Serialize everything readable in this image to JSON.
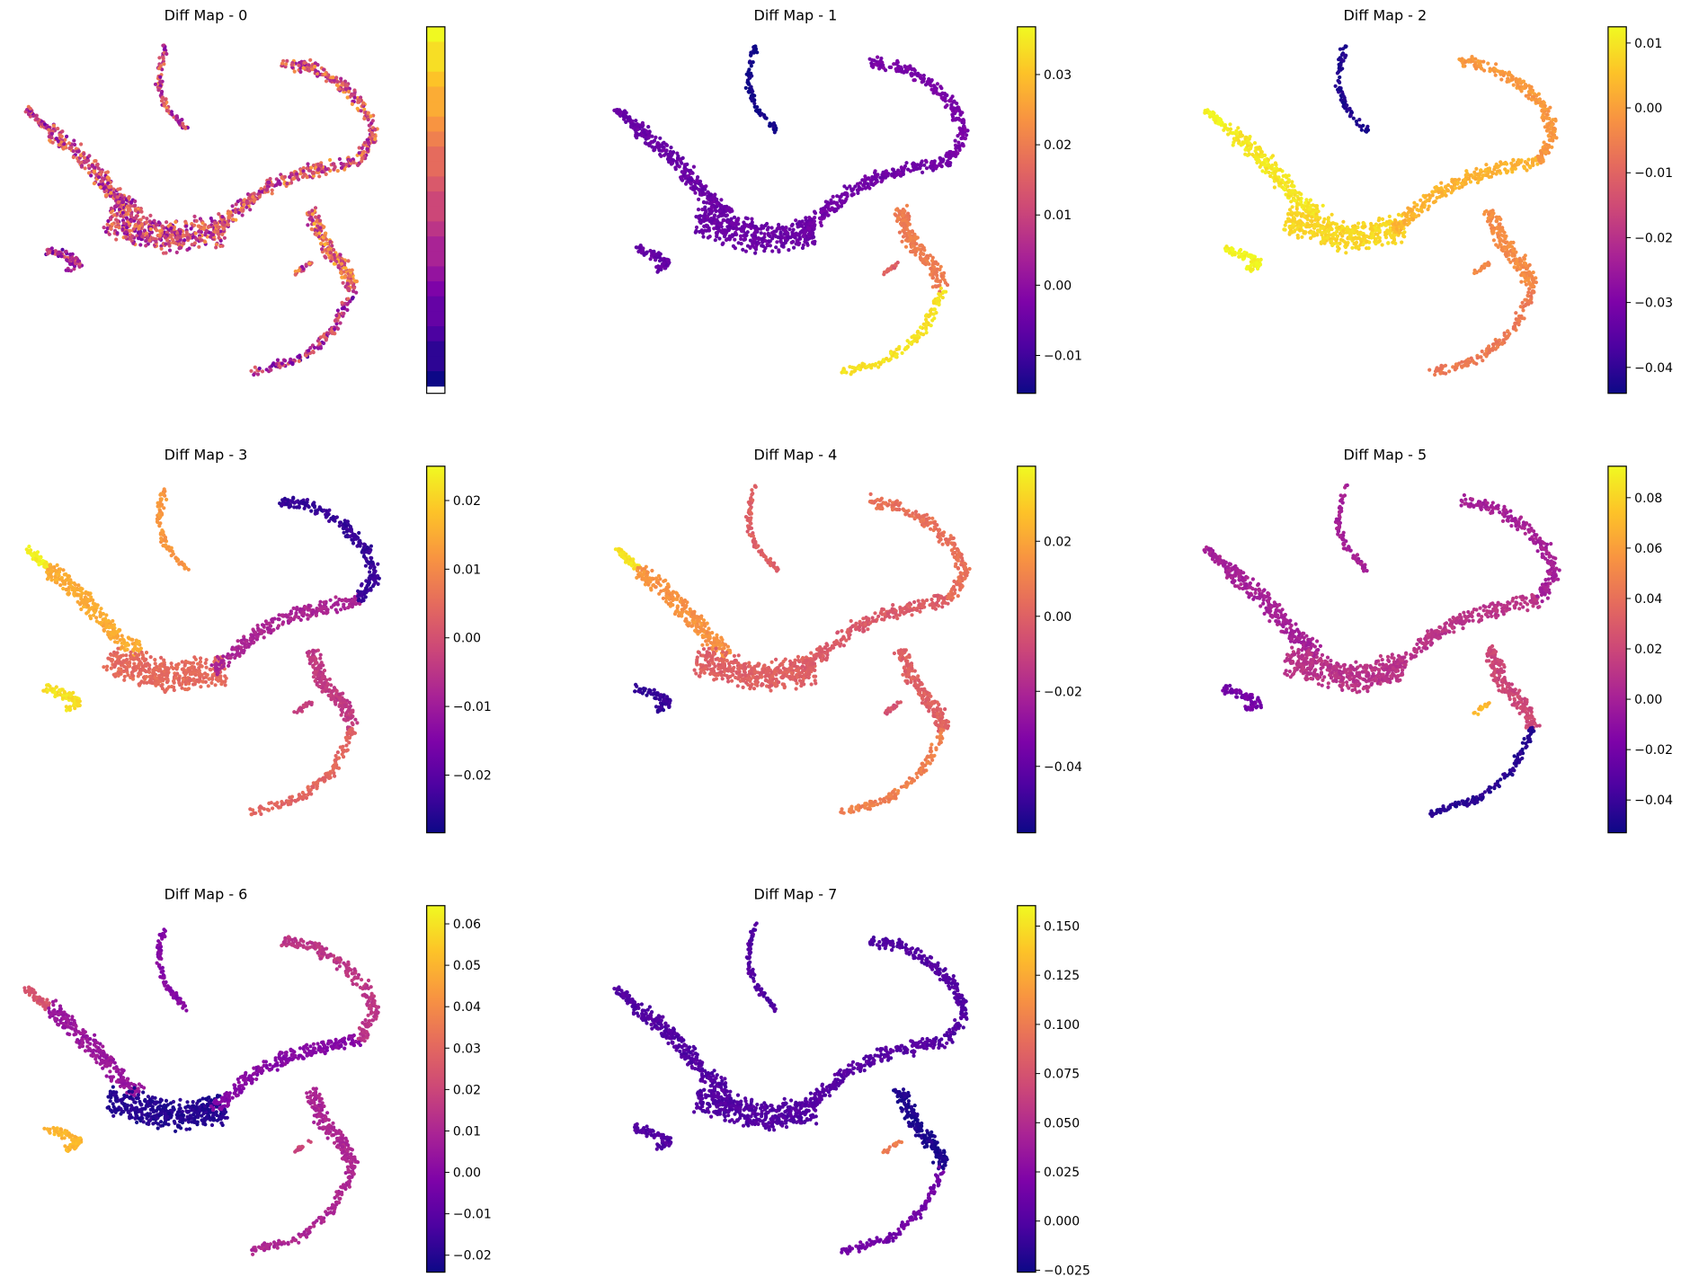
{
  "chart_data": [
    {
      "type": "scatter",
      "title": "Diff Map - 0",
      "colormap": "plasma",
      "colorbar": {
        "ticks": [],
        "style": "discrete"
      },
      "vlim": null,
      "region_values": {
        "top_branch": 0.5,
        "left_arm_tip": 0.45,
        "left_arm": 0.5,
        "center": 0.5,
        "lower_left_lobe": 0.4,
        "central_band": 0.55,
        "upper_arc": 0.55,
        "right_branch_upper": 0.6,
        "right_branch_lower_tip": 0.4,
        "spur": 0.55
      }
    },
    {
      "type": "scatter",
      "title": "Diff Map - 1",
      "colormap": "plasma",
      "vlim": [
        -0.0154,
        0.0368
      ],
      "colorbar": {
        "ticks": [
          0.03,
          0.02,
          0.01,
          0.0,
          -0.01
        ],
        "tick_labels": [
          "0.03",
          "0.02",
          "0.01",
          "0.00",
          "−0.01"
        ]
      },
      "region_values": {
        "top_branch": -0.015,
        "left_arm_tip": -0.005,
        "left_arm": -0.005,
        "center": -0.005,
        "lower_left_lobe": -0.006,
        "central_band": -0.004,
        "upper_arc": -0.003,
        "right_branch_upper": 0.02,
        "right_branch_lower_tip": 0.034,
        "spur": 0.015
      }
    },
    {
      "type": "scatter",
      "title": "Diff Map - 2",
      "colormap": "plasma",
      "vlim": [
        -0.044,
        0.0125
      ],
      "colorbar": {
        "ticks": [
          0.01,
          0.0,
          -0.01,
          -0.02,
          -0.03,
          -0.04
        ],
        "tick_labels": [
          "0.01",
          "0.00",
          "−0.01",
          "−0.02",
          "−0.03",
          "−0.04"
        ]
      },
      "region_values": {
        "top_branch": -0.042,
        "left_arm_tip": 0.012,
        "left_arm": 0.01,
        "center": 0.008,
        "lower_left_lobe": 0.012,
        "central_band": 0.003,
        "upper_arc": -0.001,
        "right_branch_upper": -0.003,
        "right_branch_lower_tip": -0.006,
        "spur": -0.004
      }
    },
    {
      "type": "scatter",
      "title": "Diff Map - 3",
      "colormap": "plasma",
      "vlim": [
        -0.0284,
        0.025
      ],
      "colorbar": {
        "ticks": [
          0.02,
          0.01,
          0.0,
          -0.01,
          -0.02
        ],
        "tick_labels": [
          "0.02",
          "0.01",
          "0.00",
          "−0.01",
          "−0.02"
        ]
      },
      "region_values": {
        "top_branch": 0.012,
        "left_arm_tip": 0.024,
        "left_arm": 0.015,
        "center": 0.005,
        "lower_left_lobe": 0.022,
        "central_band": -0.008,
        "upper_arc": -0.024,
        "right_branch_upper": -0.004,
        "right_branch_lower_tip": 0.004,
        "spur": -0.003
      }
    },
    {
      "type": "scatter",
      "title": "Diff Map - 4",
      "colormap": "plasma",
      "vlim": [
        -0.0577,
        0.04
      ],
      "colorbar": {
        "ticks": [
          0.02,
          0.0,
          -0.02,
          -0.04
        ],
        "tick_labels": [
          "0.02",
          "0.00",
          "−0.02",
          "−0.04"
        ]
      },
      "region_values": {
        "top_branch": 0.0,
        "left_arm_tip": 0.035,
        "left_arm": 0.015,
        "center": 0.0,
        "lower_left_lobe": -0.05,
        "central_band": -0.002,
        "upper_arc": 0.005,
        "right_branch_upper": 0.0,
        "right_branch_lower_tip": 0.01,
        "spur": -0.005
      }
    },
    {
      "type": "scatter",
      "title": "Diff Map - 5",
      "colormap": "plasma",
      "vlim": [
        -0.053,
        0.0925
      ],
      "colorbar": {
        "ticks": [
          0.08,
          0.06,
          0.04,
          0.02,
          0.0,
          -0.02,
          -0.04
        ],
        "tick_labels": [
          "0.08",
          "0.06",
          "0.04",
          "0.02",
          "0.00",
          "−0.02",
          "−0.04"
        ]
      },
      "region_values": {
        "top_branch": 0.0,
        "left_arm_tip": 0.0,
        "left_arm": 0.0,
        "center": 0.01,
        "lower_left_lobe": -0.02,
        "central_band": 0.01,
        "upper_arc": 0.0,
        "right_branch_upper": 0.02,
        "right_branch_lower_tip": -0.045,
        "spur": 0.07
      }
    },
    {
      "type": "scatter",
      "title": "Diff Map - 6",
      "colormap": "plasma",
      "vlim": [
        -0.0241,
        0.0644
      ],
      "colorbar": {
        "ticks": [
          0.06,
          0.05,
          0.04,
          0.03,
          0.02,
          0.01,
          0.0,
          -0.01,
          -0.02
        ],
        "tick_labels": [
          "0.06",
          "0.05",
          "0.04",
          "0.03",
          "0.02",
          "0.01",
          "0.00",
          "−0.01",
          "−0.02"
        ]
      },
      "region_values": {
        "top_branch": 0.0,
        "left_arm_tip": 0.025,
        "left_arm": 0.005,
        "center": -0.02,
        "lower_left_lobe": 0.05,
        "central_band": 0.0,
        "upper_arc": 0.015,
        "right_branch_upper": 0.01,
        "right_branch_lower_tip": 0.01,
        "spur": 0.02
      }
    },
    {
      "type": "scatter",
      "title": "Diff Map - 7",
      "colormap": "plasma",
      "vlim": [
        -0.026,
        0.1604
      ],
      "colorbar": {
        "ticks": [
          0.15,
          0.125,
          0.1,
          0.075,
          0.05,
          0.025,
          0.0,
          -0.025
        ],
        "tick_labels": [
          "0.150",
          "0.125",
          "0.100",
          "0.075",
          "0.050",
          "0.025",
          "0.000",
          "−0.025"
        ]
      },
      "region_values": {
        "top_branch": 0.0,
        "left_arm_tip": 0.0,
        "left_arm": 0.0,
        "center": 0.0,
        "lower_left_lobe": 0.0,
        "central_band": 0.002,
        "upper_arc": 0.0,
        "right_branch_upper": -0.02,
        "right_branch_lower_tip": 0.015,
        "spur": 0.1
      }
    }
  ]
}
